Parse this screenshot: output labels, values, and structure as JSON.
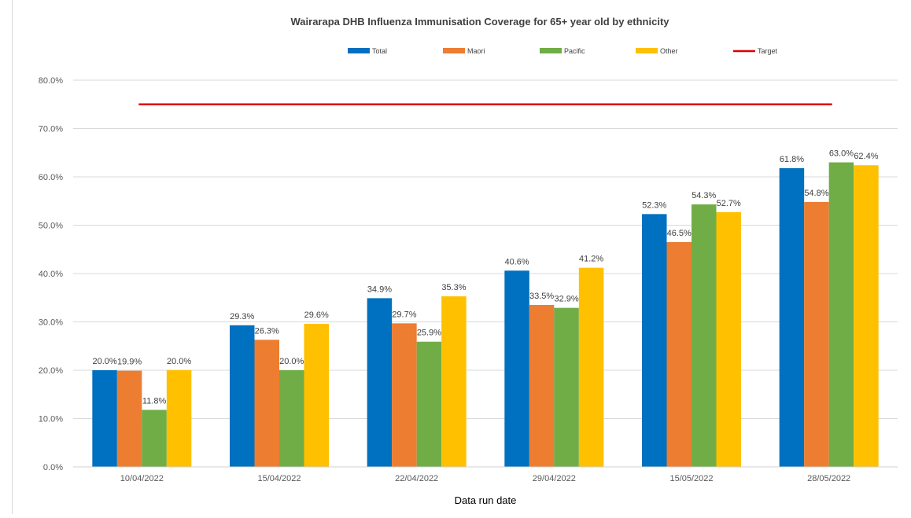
{
  "chart_data": {
    "type": "bar",
    "title": "Wairarapa DHB Influenza Immunisation Coverage for 65+ year old by ethnicity",
    "xlabel": "Data run date",
    "ylabel": "",
    "ylim": [
      0,
      80
    ],
    "y_ticks": [
      "0.0%",
      "10.0%",
      "20.0%",
      "30.0%",
      "40.0%",
      "50.0%",
      "60.0%",
      "70.0%",
      "80.0%"
    ],
    "grid": true,
    "legend_position": "top",
    "categories": [
      "10/04/2022",
      "15/04/2022",
      "22/04/2022",
      "29/04/2022",
      "15/05/2022",
      "28/05/2022"
    ],
    "series": [
      {
        "name": "Total",
        "color": "#0070C0",
        "values": [
          20.0,
          29.3,
          34.9,
          40.6,
          52.3,
          61.8
        ],
        "labels": [
          "20.0%",
          "29.3%",
          "34.9%",
          "40.6%",
          "52.3%",
          "61.8%"
        ]
      },
      {
        "name": "Maori",
        "color": "#ED7D31",
        "values": [
          19.9,
          26.3,
          29.7,
          33.5,
          46.5,
          54.8
        ],
        "labels": [
          "19.9%",
          "26.3%",
          "29.7%",
          "33.5%",
          "46.5%",
          "54.8%"
        ]
      },
      {
        "name": "Pacific",
        "color": "#70AD47",
        "values": [
          11.8,
          20.0,
          25.9,
          32.9,
          54.3,
          63.0
        ],
        "labels": [
          "11.8%",
          "20.0%",
          "25.9%",
          "32.9%",
          "54.3%",
          "63.0%"
        ]
      },
      {
        "name": "Other",
        "color": "#FFC000",
        "values": [
          20.0,
          29.6,
          35.3,
          41.2,
          52.7,
          62.4
        ],
        "labels": [
          "20.0%",
          "29.6%",
          "35.3%",
          "41.2%",
          "52.7%",
          "62.4%"
        ]
      }
    ],
    "target": {
      "name": "Target",
      "color": "#E00000",
      "value": 75
    }
  }
}
